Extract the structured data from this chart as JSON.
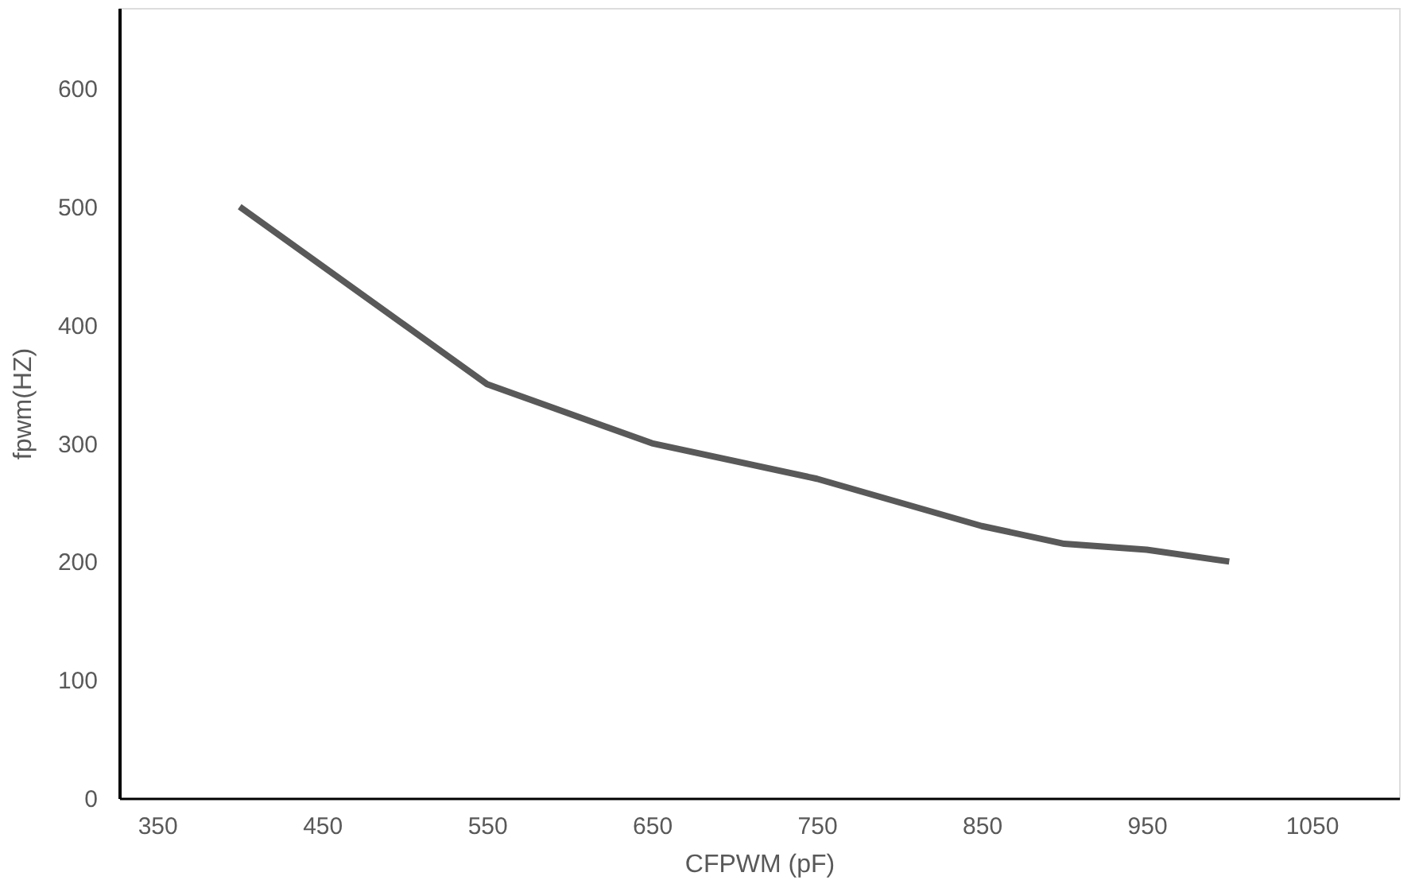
{
  "chart_data": {
    "type": "line",
    "xlabel": "CFPWM (pF)",
    "ylabel": "fpwm(HZ)",
    "x": [
      400,
      550,
      650,
      750,
      850,
      900,
      950,
      1000
    ],
    "series": [
      {
        "color": "#595959",
        "values": [
          500,
          350,
          300,
          270,
          230,
          215,
          210,
          200
        ]
      }
    ],
    "xlim": [
      327,
      1103
    ],
    "ylim": [
      0,
      668
    ],
    "xticks": [
      350,
      450,
      550,
      650,
      750,
      850,
      950,
      1050
    ],
    "yticks": [
      0,
      100,
      200,
      300,
      400,
      500,
      600
    ],
    "grid": false,
    "legend": false,
    "marker": "none",
    "line_style": "solid"
  }
}
